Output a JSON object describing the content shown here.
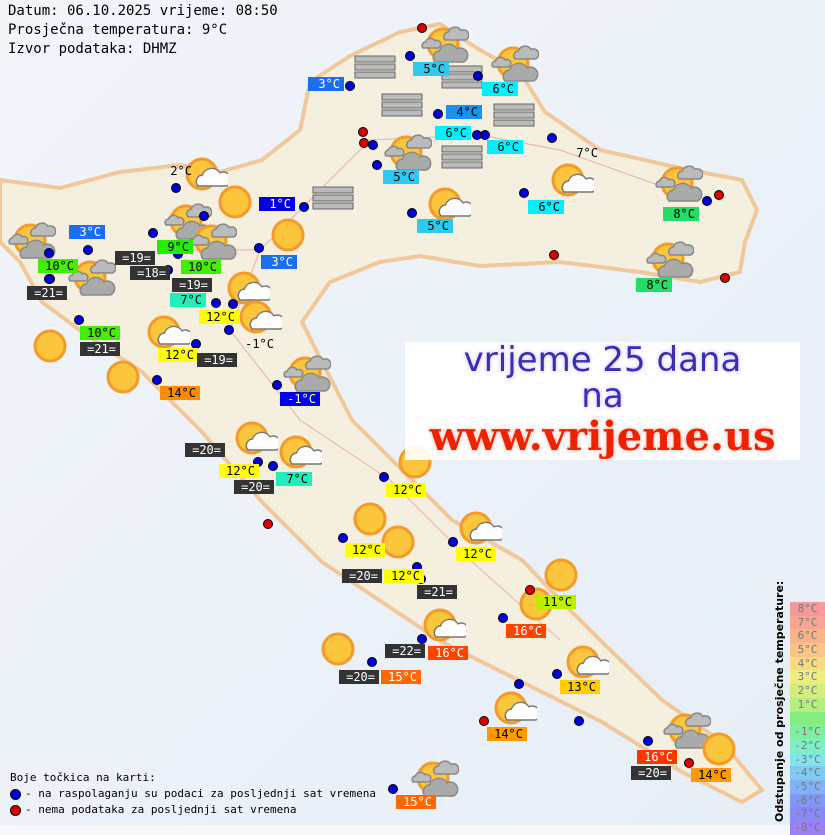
{
  "header": {
    "line1": "Datum: 06.10.2025 vrijeme: 08:50",
    "line2": "Prosječna temperatura: 9°C",
    "line3": "Izvor podataka: DHMZ"
  },
  "ad": {
    "line1": "vrijeme 25 dana",
    "line2": "na",
    "line3": "www.vrijeme.us"
  },
  "legend": {
    "title": "Boje točkica na karti:",
    "blue": "- na raspolaganju su podaci za posljednji sat vremena",
    "red": "- nema podataka za posljednji sat vremena",
    "blue_color": "#0000dd",
    "red_color": "#dd0000"
  },
  "scale": {
    "title": "Odstupanje od prosječne temperature:",
    "steps": [
      {
        "text": "8°C",
        "color": "#f49a9a"
      },
      {
        "text": "7°C",
        "color": "#f7a593"
      },
      {
        "text": "6°C",
        "color": "#f8b48a"
      },
      {
        "text": "5°C",
        "color": "#f8c487"
      },
      {
        "text": "4°C",
        "color": "#f6db80"
      },
      {
        "text": "3°C",
        "color": "#eeee80"
      },
      {
        "text": "2°C",
        "color": "#d2ee80"
      },
      {
        "text": "1°C",
        "color": "#b2ee80"
      },
      {
        "text": "",
        "color": "#86ee80"
      },
      {
        "text": "-1°C",
        "color": "#80eea0"
      },
      {
        "text": "-2°C",
        "color": "#80eec4"
      },
      {
        "text": "-3°C",
        "color": "#80e4ea"
      },
      {
        "text": "-4°C",
        "color": "#80caf2"
      },
      {
        "text": "-5°C",
        "color": "#80b2f4"
      },
      {
        "text": "-6°C",
        "color": "#8098f4"
      },
      {
        "text": "-7°C",
        "color": "#8a88f4"
      },
      {
        "text": "-8°C",
        "color": "#9a80f0"
      }
    ]
  },
  "labels": [
    {
      "text": "3°C",
      "bg": "#1a6ef0",
      "fg": "#fff"
    },
    {
      "text": "5°C",
      "bg": "#30c8f0",
      "fg": "#000"
    },
    {
      "text": "6°C",
      "bg": "#00f0ff",
      "fg": "#000"
    },
    {
      "text": "4°C",
      "bg": "#1a90f0",
      "fg": "#000"
    },
    {
      "text": "6°C",
      "bg": "#00f0ff",
      "fg": "#000"
    },
    {
      "text": "6°C",
      "bg": "#00f0ff",
      "fg": "#000"
    },
    {
      "text": "5°C",
      "bg": "#30c8f0",
      "fg": "#000"
    },
    {
      "text": "5°C",
      "bg": "#30c8f0",
      "fg": "#000"
    },
    {
      "text": "6°C",
      "bg": "#00f0ff",
      "fg": "#000"
    },
    {
      "text": "7°C",
      "bg": "",
      "fg": "#000"
    },
    {
      "text": "8°C",
      "bg": "#22dd66",
      "fg": "#000"
    },
    {
      "text": "8°C",
      "bg": "#22dd66",
      "fg": "#000"
    },
    {
      "text": "2°C",
      "bg": "",
      "fg": "#000"
    },
    {
      "text": "1°C",
      "bg": "#0000dd",
      "fg": "#fff"
    },
    {
      "text": "3°C",
      "bg": "#1a6ef0",
      "fg": "#fff"
    },
    {
      "text": "9°C",
      "bg": "#22ee00",
      "fg": "#000"
    },
    {
      "text": "=19=",
      "bg": "#333",
      "fg": "#fff"
    },
    {
      "text": "10°C",
      "bg": "#44ee00",
      "fg": "#000"
    },
    {
      "text": "10°C",
      "bg": "#44ee00",
      "fg": "#000"
    },
    {
      "text": "=18=",
      "bg": "#333",
      "fg": "#fff"
    },
    {
      "text": "7°C",
      "bg": "#22eebb",
      "fg": "#000"
    },
    {
      "text": "=19=",
      "bg": "#333",
      "fg": "#fff"
    },
    {
      "text": "3°C",
      "bg": "#1a6ef0",
      "fg": "#fff"
    },
    {
      "text": "=21=",
      "bg": "#333",
      "fg": "#fff"
    },
    {
      "text": "12°C",
      "bg": "#ffff00",
      "fg": "#000"
    },
    {
      "text": "10°C",
      "bg": "#44ee00",
      "fg": "#000"
    },
    {
      "text": "=21=",
      "bg": "#333",
      "fg": "#fff"
    },
    {
      "text": "-1°C",
      "bg": "",
      "fg": "#000"
    },
    {
      "text": "12°C",
      "bg": "#ffff00",
      "fg": "#000"
    },
    {
      "text": "=19=",
      "bg": "#333",
      "fg": "#fff"
    },
    {
      "text": "14°C",
      "bg": "#ff8c00",
      "fg": "#000"
    },
    {
      "text": "-1°C",
      "bg": "#0000ee",
      "fg": "#fff"
    },
    {
      "text": "=20=",
      "bg": "#333",
      "fg": "#fff"
    },
    {
      "text": "12°C",
      "bg": "#ffff00",
      "fg": "#000"
    },
    {
      "text": "7°C",
      "bg": "#22eebb",
      "fg": "#000"
    },
    {
      "text": "=20=",
      "bg": "#333",
      "fg": "#fff"
    },
    {
      "text": "12°C",
      "bg": "#ffff00",
      "fg": "#000"
    },
    {
      "text": "12°C",
      "bg": "#ffff00",
      "fg": "#000"
    },
    {
      "text": "12°C",
      "bg": "#ffff00",
      "fg": "#000"
    },
    {
      "text": "=20=",
      "bg": "#333",
      "fg": "#fff"
    },
    {
      "text": "12°C",
      "bg": "#ffff00",
      "fg": "#000"
    },
    {
      "text": "=21=",
      "bg": "#333",
      "fg": "#fff"
    },
    {
      "text": "11°C",
      "bg": "#bbee00",
      "fg": "#000"
    },
    {
      "text": "16°C",
      "bg": "#ff4400",
      "fg": "#fff"
    },
    {
      "text": "=22=",
      "bg": "#333",
      "fg": "#fff"
    },
    {
      "text": "16°C",
      "bg": "#ff4400",
      "fg": "#fff"
    },
    {
      "text": "=20=",
      "bg": "#333",
      "fg": "#fff"
    },
    {
      "text": "15°C",
      "bg": "#ff6a00",
      "fg": "#fff"
    },
    {
      "text": "13°C",
      "bg": "#ffcc00",
      "fg": "#000"
    },
    {
      "text": "14°C",
      "bg": "#ff9900",
      "fg": "#000"
    },
    {
      "text": "16°C",
      "bg": "#ff3300",
      "fg": "#fff"
    },
    {
      "text": "=20=",
      "bg": "#333",
      "fg": "#fff"
    },
    {
      "text": "14°C",
      "bg": "#ff9900",
      "fg": "#000"
    },
    {
      "text": "15°C",
      "bg": "#ff6a00",
      "fg": "#fff"
    }
  ],
  "stations": [
    "red",
    "blue",
    "blue",
    "blue",
    "blue",
    "red",
    "red",
    "blue",
    "blue",
    "blue",
    "blue",
    "blue",
    "blue",
    "blue",
    "blue",
    "red",
    "red",
    "red",
    "blue",
    "blue",
    "blue",
    "blue",
    "blue",
    "blue",
    "blue",
    "blue",
    "red",
    "blue",
    "blue",
    "blue",
    "blue",
    "blue",
    "blue",
    "blue",
    "blue",
    "blue",
    "blue",
    "blue",
    "blue",
    "blue",
    "blue",
    "red",
    "red",
    "blue",
    "blue",
    "blue",
    "blue",
    "blue",
    "red",
    "blue",
    "blue",
    "red",
    "blue",
    "blue",
    "blue"
  ],
  "icons": [
    "cloudy",
    "cloudy",
    "cloudy",
    "cloudy",
    "cloudy",
    "cloudy",
    "cloudy",
    "cloudy",
    "cloudy",
    "cloudy",
    "cloudy",
    "cloudy",
    "partly",
    "partly",
    "partly",
    "partly",
    "partly",
    "partly",
    "partly",
    "partly",
    "partly",
    "partly",
    "partly",
    "partly",
    "sunny",
    "sunny",
    "sunny",
    "sunny",
    "sunny",
    "sunny",
    "sunny",
    "sunny",
    "sunny",
    "sunny",
    "sunny",
    "fog",
    "fog",
    "fog",
    "fog",
    "fog",
    "fog"
  ]
}
